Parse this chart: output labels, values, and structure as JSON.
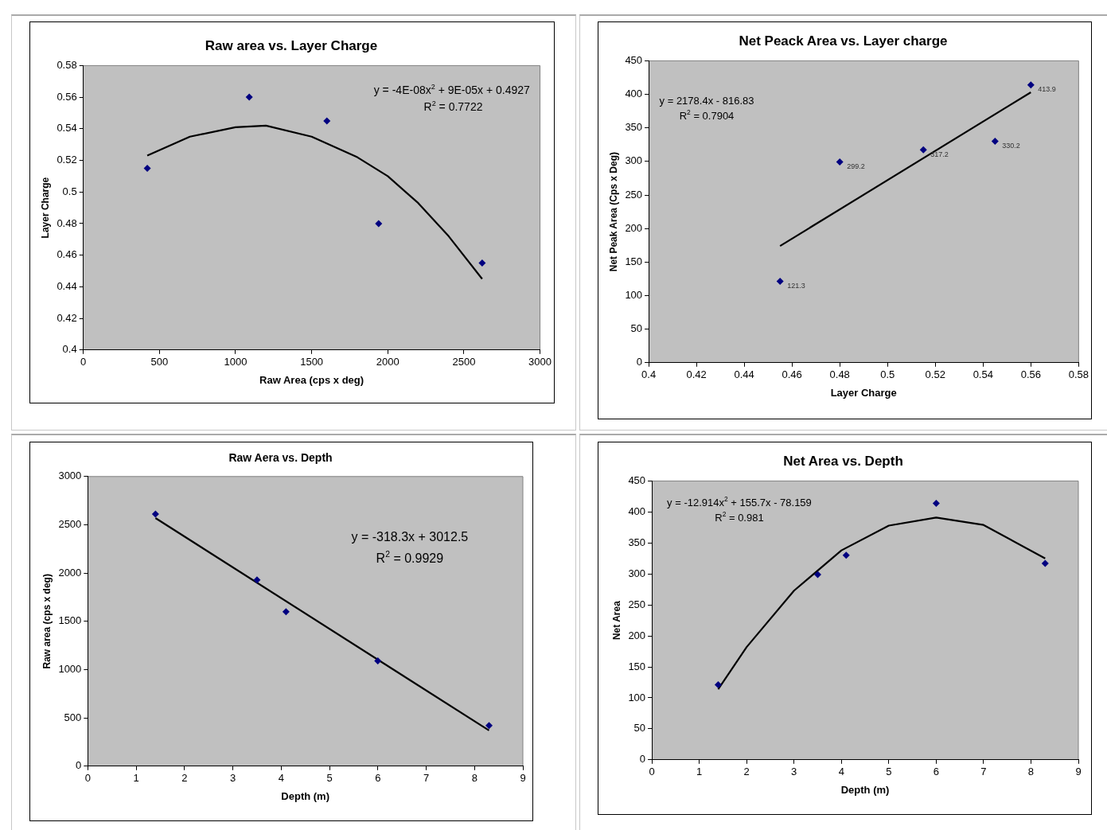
{
  "chart_data": [
    {
      "type": "scatter",
      "title": "Raw area vs. Layer Charge",
      "xlabel": "Raw Area (cps x deg)",
      "ylabel": "Layer Charge",
      "xlim": [
        0,
        3000
      ],
      "xticks": [
        0,
        500,
        1000,
        1500,
        2000,
        2500,
        3000
      ],
      "ylim": [
        0.4,
        0.58
      ],
      "yticks": [
        0.4,
        0.42,
        0.44,
        0.46,
        0.48,
        0.5,
        0.52,
        0.54,
        0.56,
        0.58
      ],
      "grid": false,
      "legend": false,
      "marker": "diamond",
      "series": [
        {
          "color": "#000080",
          "x": [
            420,
            1090,
            1600,
            1940,
            2620
          ],
          "values": [
            0.515,
            0.56,
            0.545,
            0.48,
            0.455
          ]
        },
        {
          "type": "line",
          "color": "#000000",
          "marker": "none",
          "x": [
            420,
            700,
            1000,
            1200,
            1500,
            1800,
            2000,
            2200,
            2400,
            2620
          ],
          "values": [
            0.523,
            0.535,
            0.541,
            0.542,
            0.535,
            0.522,
            0.51,
            0.493,
            0.472,
            0.445
          ]
        }
      ],
      "annotations": [
        "y = -4E-08x$^{2}$ + 9E-05x + 0.4927",
        "R$^{2}$ = 0.7722"
      ]
    },
    {
      "type": "scatter",
      "title": "Net Peack Area vs. Layer charge",
      "xlabel": "Layer Charge",
      "ylabel": "Net Peak Area (Cps x Deg)",
      "xlim": [
        0.4,
        0.58
      ],
      "xticks": [
        0.4,
        0.42,
        0.44,
        0.46,
        0.48,
        0.5,
        0.52,
        0.54,
        0.56,
        0.58
      ],
      "ylim": [
        0,
        450
      ],
      "yticks": [
        0,
        50,
        100,
        150,
        200,
        250,
        300,
        350,
        400,
        450
      ],
      "grid": false,
      "legend": false,
      "marker": "diamond",
      "series": [
        {
          "color": "#000080",
          "x": [
            0.455,
            0.48,
            0.515,
            0.545,
            0.56
          ],
          "values": [
            121.3,
            299.2,
            317.2,
            330.2,
            413.9
          ],
          "value_labels": [
            "121.3",
            "299.2",
            "317.2",
            "330.2",
            "413.9"
          ]
        },
        {
          "type": "line",
          "color": "#000000",
          "marker": "none",
          "x": [
            0.455,
            0.56
          ],
          "values": [
            174,
            403
          ]
        }
      ],
      "annotations": [
        "y = 2178.4x - 816.83",
        "R$^{2}$ = 0.7904"
      ]
    },
    {
      "type": "scatter",
      "title": "Raw Aera vs. Depth",
      "xlabel": "Depth (m)",
      "ylabel": "Raw area (cps x deg)",
      "xlim": [
        0,
        9
      ],
      "xticks": [
        0,
        1,
        2,
        3,
        4,
        5,
        6,
        7,
        8,
        9
      ],
      "ylim": [
        0,
        3000
      ],
      "yticks": [
        0,
        500,
        1000,
        1500,
        2000,
        2500,
        3000
      ],
      "grid": false,
      "legend": false,
      "marker": "diamond",
      "series": [
        {
          "color": "#000080",
          "x": [
            1.4,
            3.5,
            4.1,
            6.0,
            8.3
          ],
          "values": [
            2610,
            1930,
            1600,
            1090,
            420
          ]
        },
        {
          "type": "line",
          "color": "#000000",
          "marker": "none",
          "x": [
            1.4,
            8.3
          ],
          "values": [
            2570,
            370
          ]
        }
      ],
      "annotations": [
        "y = -318.3x + 3012.5",
        "R$^{2}$ = 0.9929"
      ]
    },
    {
      "type": "scatter",
      "title": "Net Area vs. Depth",
      "xlabel": "Depth (m)",
      "ylabel": "Net Area",
      "xlim": [
        0,
        9
      ],
      "xticks": [
        0,
        1,
        2,
        3,
        4,
        5,
        6,
        7,
        8,
        9
      ],
      "ylim": [
        0,
        450
      ],
      "yticks": [
        0,
        50,
        100,
        150,
        200,
        250,
        300,
        350,
        400,
        450
      ],
      "grid": false,
      "legend": false,
      "marker": "diamond",
      "series": [
        {
          "color": "#000080",
          "x": [
            1.4,
            3.5,
            4.1,
            6.0,
            8.3
          ],
          "values": [
            121,
            299,
            330,
            414,
            317
          ]
        },
        {
          "type": "line",
          "color": "#000000",
          "marker": "none",
          "x": [
            1.4,
            2,
            3,
            4,
            5,
            6,
            7,
            8.3
          ],
          "values": [
            114,
            182,
            273,
            338,
            378,
            391,
            379,
            325
          ]
        }
      ],
      "annotations": [
        "y = -12.914x$^{2}$ + 155.7x - 78.159",
        "R$^{2}$ = 0.981"
      ]
    }
  ]
}
